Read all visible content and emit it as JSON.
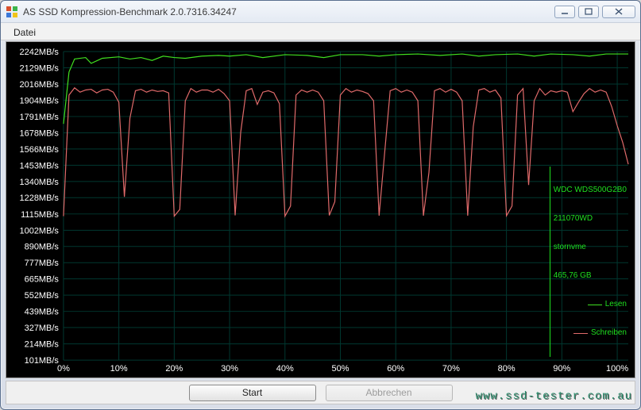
{
  "window": {
    "title": "AS SSD Kompression-Benchmark 2.0.7316.34247"
  },
  "menubar": {
    "file_label": "Datei"
  },
  "chart": {
    "type": "line",
    "background_color": "#000000",
    "grid_color": "#003830",
    "text_color": "#ffffff",
    "axis_fontsize": 11,
    "y_unit": "MB/s",
    "x_unit": "%",
    "ylim": [
      101,
      2242
    ],
    "y_ticks": [
      2242,
      2129,
      2016,
      1904,
      1791,
      1678,
      1566,
      1453,
      1340,
      1228,
      1115,
      1002,
      890,
      777,
      665,
      552,
      439,
      327,
      214,
      101
    ],
    "y_tick_labels": [
      "2242MB/s",
      "2129MB/s",
      "2016MB/s",
      "1904MB/s",
      "1791MB/s",
      "1678MB/s",
      "1566MB/s",
      "1453MB/s",
      "1340MB/s",
      "1228MB/s",
      "1115MB/s",
      "1002MB/s",
      "890MB/s",
      "777MB/s",
      "665MB/s",
      "552MB/s",
      "439MB/s",
      "327MB/s",
      "214MB/s",
      "101MB/s"
    ],
    "x_ticks": [
      0,
      10,
      20,
      30,
      40,
      50,
      60,
      70,
      80,
      90,
      100
    ],
    "x_tick_labels": [
      "0%",
      "10%",
      "20%",
      "30%",
      "40%",
      "50%",
      "60%",
      "70%",
      "80%",
      "90%",
      "100%"
    ],
    "series": [
      {
        "name": "read",
        "label": "Lesen",
        "color": "#3fe020",
        "points": [
          [
            0,
            1740
          ],
          [
            1,
            2100
          ],
          [
            2,
            2190
          ],
          [
            4,
            2200
          ],
          [
            5,
            2160
          ],
          [
            7,
            2195
          ],
          [
            10,
            2205
          ],
          [
            12,
            2190
          ],
          [
            14,
            2200
          ],
          [
            16,
            2180
          ],
          [
            18,
            2210
          ],
          [
            20,
            2200
          ],
          [
            22,
            2195
          ],
          [
            25,
            2210
          ],
          [
            28,
            2215
          ],
          [
            30,
            2210
          ],
          [
            33,
            2220
          ],
          [
            36,
            2200
          ],
          [
            40,
            2220
          ],
          [
            44,
            2215
          ],
          [
            47,
            2200
          ],
          [
            50,
            2220
          ],
          [
            54,
            2220
          ],
          [
            57,
            2210
          ],
          [
            60,
            2220
          ],
          [
            64,
            2225
          ],
          [
            68,
            2215
          ],
          [
            72,
            2225
          ],
          [
            75,
            2210
          ],
          [
            78,
            2220
          ],
          [
            82,
            2225
          ],
          [
            85,
            2210
          ],
          [
            88,
            2225
          ],
          [
            92,
            2220
          ],
          [
            95,
            2210
          ],
          [
            98,
            2225
          ],
          [
            100,
            2225
          ],
          [
            102,
            2225
          ]
        ]
      },
      {
        "name": "write",
        "label": "Schreiben",
        "color": "#e06a6a",
        "points": [
          [
            0,
            1100
          ],
          [
            1,
            1940
          ],
          [
            2,
            1990
          ],
          [
            3,
            1960
          ],
          [
            4,
            1975
          ],
          [
            5,
            1980
          ],
          [
            6,
            1955
          ],
          [
            7,
            1975
          ],
          [
            8,
            1980
          ],
          [
            9,
            1960
          ],
          [
            10,
            1890
          ],
          [
            11,
            1234
          ],
          [
            12,
            1780
          ],
          [
            13,
            1970
          ],
          [
            14,
            1980
          ],
          [
            15,
            1960
          ],
          [
            16,
            1975
          ],
          [
            17,
            1965
          ],
          [
            18,
            1970
          ],
          [
            19,
            1955
          ],
          [
            20,
            1100
          ],
          [
            21,
            1146
          ],
          [
            22,
            1900
          ],
          [
            23,
            1985
          ],
          [
            24,
            1960
          ],
          [
            25,
            1975
          ],
          [
            26,
            1975
          ],
          [
            27,
            1960
          ],
          [
            28,
            1980
          ],
          [
            29,
            1950
          ],
          [
            30,
            1900
          ],
          [
            31,
            1105
          ],
          [
            32,
            1680
          ],
          [
            33,
            1970
          ],
          [
            34,
            1985
          ],
          [
            35,
            1875
          ],
          [
            36,
            1960
          ],
          [
            37,
            1970
          ],
          [
            38,
            1955
          ],
          [
            39,
            1880
          ],
          [
            40,
            1100
          ],
          [
            41,
            1170
          ],
          [
            42,
            1940
          ],
          [
            43,
            1975
          ],
          [
            44,
            1960
          ],
          [
            45,
            1975
          ],
          [
            46,
            1960
          ],
          [
            47,
            1900
          ],
          [
            48,
            1105
          ],
          [
            49,
            1200
          ],
          [
            50,
            1940
          ],
          [
            51,
            1985
          ],
          [
            52,
            1960
          ],
          [
            53,
            1975
          ],
          [
            54,
            1965
          ],
          [
            55,
            1950
          ],
          [
            56,
            1900
          ],
          [
            57,
            1103
          ],
          [
            58,
            1540
          ],
          [
            59,
            1970
          ],
          [
            60,
            1985
          ],
          [
            61,
            1960
          ],
          [
            62,
            1975
          ],
          [
            63,
            1960
          ],
          [
            64,
            1900
          ],
          [
            65,
            1103
          ],
          [
            66,
            1404
          ],
          [
            67,
            1970
          ],
          [
            68,
            1985
          ],
          [
            69,
            1960
          ],
          [
            70,
            1980
          ],
          [
            71,
            1960
          ],
          [
            72,
            1900
          ],
          [
            73,
            1103
          ],
          [
            74,
            1720
          ],
          [
            75,
            1975
          ],
          [
            76,
            1985
          ],
          [
            77,
            1960
          ],
          [
            78,
            1975
          ],
          [
            79,
            1920
          ],
          [
            80,
            1103
          ],
          [
            81,
            1170
          ],
          [
            82,
            1940
          ],
          [
            83,
            1985
          ],
          [
            84,
            1316
          ],
          [
            85,
            1900
          ],
          [
            86,
            1985
          ],
          [
            87,
            1940
          ],
          [
            88,
            1970
          ],
          [
            89,
            1960
          ],
          [
            90,
            1970
          ],
          [
            91,
            1960
          ],
          [
            92,
            1825
          ],
          [
            93,
            1890
          ],
          [
            94,
            1950
          ],
          [
            95,
            1985
          ],
          [
            96,
            1960
          ],
          [
            97,
            1975
          ],
          [
            98,
            1960
          ],
          [
            99,
            1860
          ],
          [
            100,
            1728
          ],
          [
            101,
            1610
          ],
          [
            102,
            1460
          ]
        ]
      }
    ]
  },
  "legend": {
    "device_line1": "WDC WDS500G2B0",
    "device_line2": "211070WD",
    "device_line3": "stornvme",
    "device_line4": "465,76 GB",
    "read_label": "Lesen",
    "write_label": "Schreiben",
    "read_color": "#3fe020",
    "write_color": "#e06a6a",
    "text_color": "#1fe020"
  },
  "footer": {
    "start_label": "Start",
    "cancel_label": "Abbrechen",
    "cancel_enabled": false
  },
  "watermark": {
    "text": "www.ssd-tester.com.au",
    "color": "#2a8d6c"
  }
}
